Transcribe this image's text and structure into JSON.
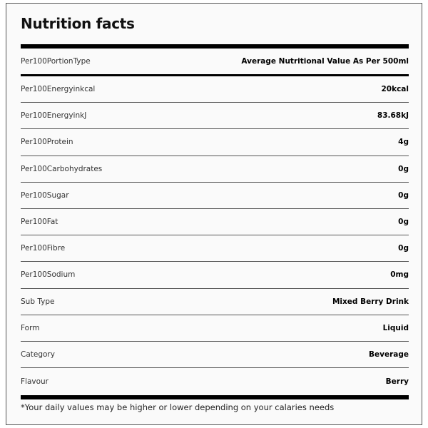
{
  "title": "Nutrition facts",
  "header_row": {
    "label": "Per100PortionType",
    "value": "Average Nutritional Value As Per 500ml"
  },
  "rows": [
    {
      "label": "Per100Energyinkcal",
      "value": "20kcal"
    },
    {
      "label": "Per100EnergyinkJ",
      "value": "83.68kJ"
    },
    {
      "label": "Per100Protein",
      "value": "4g"
    },
    {
      "label": "Per100Carbohydrates",
      "value": "0g"
    },
    {
      "label": "Per100Sugar",
      "value": "0g"
    },
    {
      "label": "Per100Fat",
      "value": "0g"
    },
    {
      "label": "Per100Fibre",
      "value": "0g"
    },
    {
      "label": "Per100Sodium",
      "value": "0mg"
    },
    {
      "label": "Sub Type",
      "value": "Mixed Berry Drink"
    },
    {
      "label": "Form",
      "value": "Liquid"
    },
    {
      "label": "Category",
      "value": "Beverage"
    },
    {
      "label": "Flavour",
      "value": "Berry"
    }
  ],
  "footnote": "*Your daily values may be higher or lower depending on your calaries needs"
}
